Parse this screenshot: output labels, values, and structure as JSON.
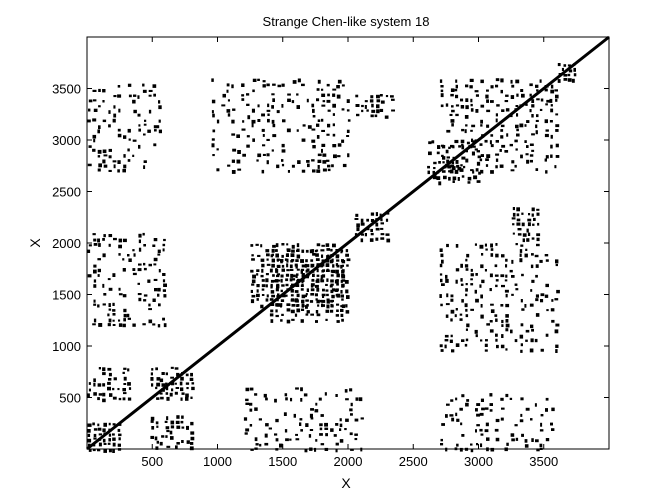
{
  "chart_data": {
    "type": "scatter",
    "title": "Strange Chen-like system 18",
    "xlabel": "X",
    "ylabel": "X",
    "xlim": [
      0,
      4000
    ],
    "ylim": [
      0,
      4000
    ],
    "x_ticks": [
      500,
      1000,
      1500,
      2000,
      2500,
      3000,
      3500
    ],
    "y_ticks": [
      500,
      1000,
      1500,
      2000,
      2500,
      3000,
      3500
    ],
    "x_tick_labels": [
      "500",
      "1000",
      "1500",
      "2000",
      "2500",
      "3000",
      "3500"
    ],
    "y_tick_labels": [
      "500",
      "1000",
      "1500",
      "2000",
      "2500",
      "3000",
      "3500"
    ],
    "grid": false,
    "marker_color": "#000000",
    "background": "#ffffff",
    "recurrence_blocks": [
      {
        "x": [
          0,
          260
        ],
        "y": [
          0,
          260
        ],
        "density": 0.85
      },
      {
        "x": [
          0,
          330
        ],
        "y": [
          480,
          800
        ],
        "density": 0.6
      },
      {
        "x": [
          480,
          800
        ],
        "y": [
          0,
          330
        ],
        "density": 0.6
      },
      {
        "x": [
          480,
          800
        ],
        "y": [
          480,
          800
        ],
        "density": 0.7
      },
      {
        "x": [
          1250,
          1950
        ],
        "y": [
          1400,
          2000
        ],
        "density": 0.75
      },
      {
        "x": [
          1400,
          2000
        ],
        "y": [
          1250,
          1950
        ],
        "density": 0.75
      },
      {
        "x": [
          2050,
          2300
        ],
        "y": [
          2050,
          2300
        ],
        "density": 0.8
      },
      {
        "x": [
          2050,
          2350
        ],
        "y": [
          3250,
          3450
        ],
        "density": 0.55
      },
      {
        "x": [
          3250,
          3450
        ],
        "y": [
          2050,
          2350
        ],
        "density": 0.55
      },
      {
        "x": [
          2600,
          3000
        ],
        "y": [
          2600,
          3000
        ],
        "density": 0.55
      },
      {
        "x": [
          3600,
          3750
        ],
        "y": [
          3600,
          3750
        ],
        "density": 0.95
      },
      {
        "x": [
          0,
          600
        ],
        "y": [
          1200,
          2100
        ],
        "density": 0.35
      },
      {
        "x": [
          1200,
          2100
        ],
        "y": [
          0,
          600
        ],
        "density": 0.3
      },
      {
        "x": [
          950,
          2000
        ],
        "y": [
          2700,
          3600
        ],
        "density": 0.3
      },
      {
        "x": [
          2700,
          3600
        ],
        "y": [
          950,
          2000
        ],
        "density": 0.35
      },
      {
        "x": [
          2700,
          3600
        ],
        "y": [
          2700,
          3600
        ],
        "density": 0.35
      },
      {
        "x": [
          0,
          550
        ],
        "y": [
          2700,
          3550
        ],
        "density": 0.3
      },
      {
        "x": [
          2700,
          3550
        ],
        "y": [
          0,
          550
        ],
        "density": 0.3
      }
    ]
  }
}
